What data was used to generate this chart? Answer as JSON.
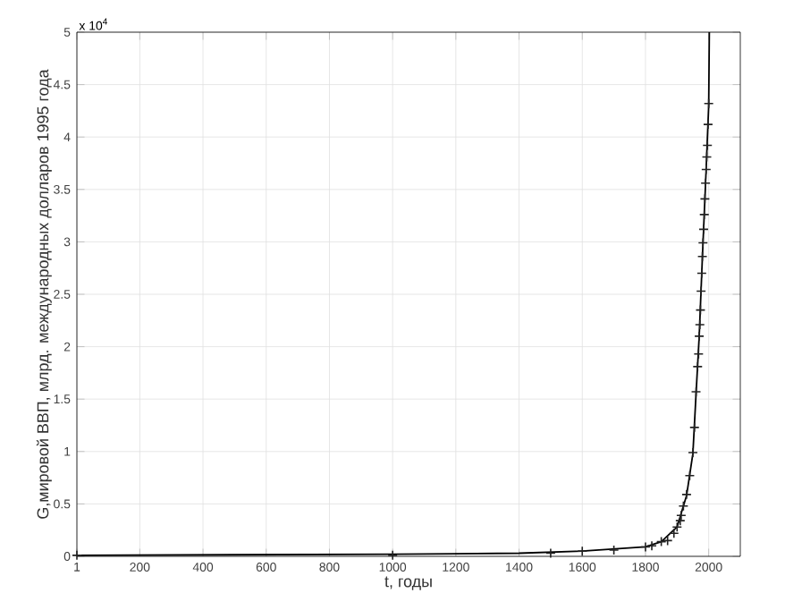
{
  "chart_data": {
    "type": "line",
    "xlabel": "t, годы",
    "ylabel": "G,мировой ВВП, млрд. международных долларов 1995 года",
    "annotations": [
      "x 10$^{4}$"
    ],
    "xlim": [
      1,
      2100
    ],
    "xticks": [
      1,
      200,
      400,
      600,
      800,
      1000,
      1200,
      1400,
      1600,
      1800,
      2000
    ],
    "ylim": [
      0,
      5
    ],
    "yticks": [
      0,
      0.5,
      1,
      1.5,
      2,
      2.5,
      3,
      3.5,
      4,
      4.5,
      5
    ],
    "grid": true,
    "series": [
      {
        "color": "#000000",
        "line_style": "solid",
        "x": [
          1,
          1000,
          1400,
          1600,
          1800,
          1850,
          1900,
          1930,
          1950,
          1960,
          1970,
          1980,
          1990,
          2000,
          2002
        ],
        "values": [
          0.01,
          0.02,
          0.03,
          0.05,
          0.09,
          0.14,
          0.28,
          0.58,
          0.98,
          1.55,
          2.1,
          2.85,
          3.55,
          4.3,
          5
        ]
      },
      {
        "type": "scatter",
        "color": "#222222",
        "marker": "cross",
        "x": [
          1,
          1000,
          1500,
          1600,
          1700,
          1800,
          1820,
          1850,
          1870,
          1890,
          1900,
          1910,
          1913,
          1920,
          1930,
          1940,
          1950,
          1955,
          1960,
          1965,
          1968,
          1970,
          1972,
          1974,
          1976,
          1978,
          1980,
          1982,
          1984,
          1986,
          1988,
          1990,
          1992,
          1994,
          1996,
          1998,
          2000
        ],
        "values": [
          0.01,
          0.01,
          0.03,
          0.05,
          0.06,
          0.09,
          0.1,
          0.14,
          0.15,
          0.22,
          0.28,
          0.34,
          0.39,
          0.48,
          0.59,
          0.77,
          0.99,
          1.23,
          1.57,
          1.81,
          1.93,
          2.1,
          2.21,
          2.35,
          2.53,
          2.7,
          2.86,
          2.99,
          3.12,
          3.26,
          3.41,
          3.56,
          3.69,
          3.81,
          3.92,
          4.12,
          4.32
        ]
      }
    ]
  }
}
